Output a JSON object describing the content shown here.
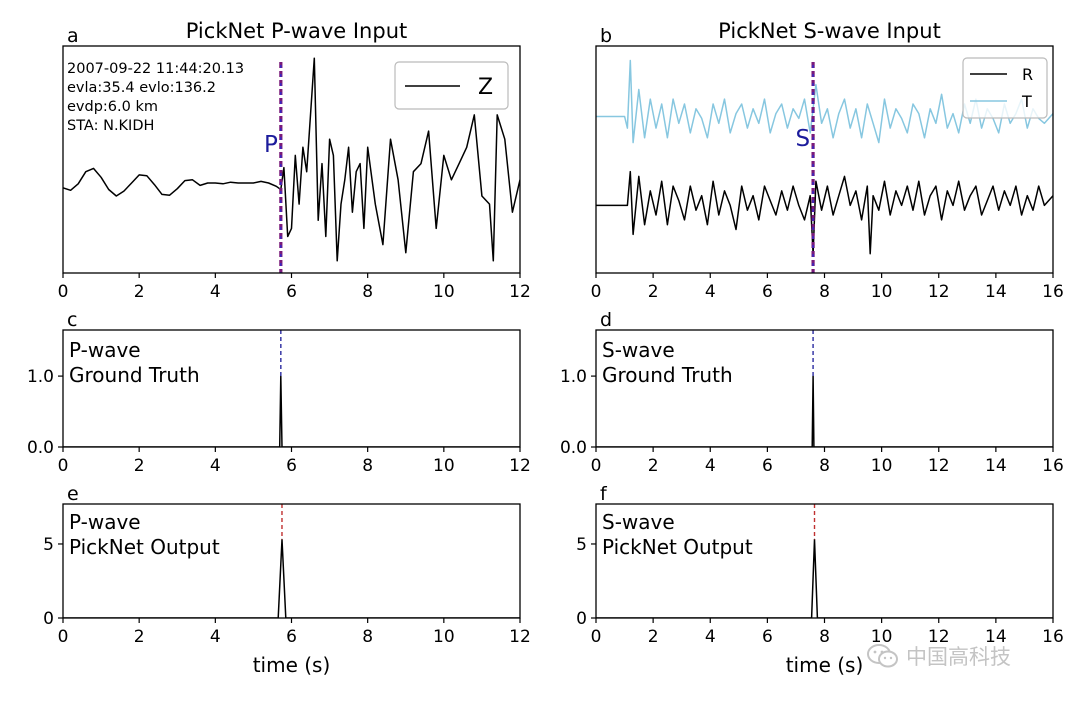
{
  "chart_data": [
    {
      "panel": "a",
      "type": "line",
      "title": "PickNet P-wave Input",
      "xlim": [
        0,
        12
      ],
      "xticks": [
        0,
        2,
        4,
        6,
        8,
        10,
        12
      ],
      "grid": false,
      "legend_placement": "top-right",
      "legend": [
        "Z"
      ],
      "info_lines": [
        "2007-09-22 11:44:20.13",
        "evla:35.4 evlo:136.2",
        "evdp:6.0 km",
        "STA: N.KIDH"
      ],
      "pick_label": "P",
      "pick_time": 5.72,
      "series": [
        {
          "name": "Z",
          "color": "#000000",
          "x": [
            0,
            0.2,
            0.4,
            0.6,
            0.8,
            1.0,
            1.2,
            1.4,
            1.6,
            1.8,
            2.0,
            2.2,
            2.4,
            2.6,
            2.8,
            3.0,
            3.2,
            3.4,
            3.6,
            3.8,
            4.0,
            4.2,
            4.4,
            4.6,
            4.8,
            5.0,
            5.2,
            5.4,
            5.6,
            5.72,
            5.8,
            5.9,
            6.0,
            6.1,
            6.2,
            6.3,
            6.4,
            6.5,
            6.6,
            6.7,
            6.8,
            6.9,
            7.0,
            7.1,
            7.2,
            7.3,
            7.4,
            7.5,
            7.6,
            7.7,
            7.8,
            7.9,
            8.0,
            8.2,
            8.4,
            8.6,
            8.8,
            9.0,
            9.2,
            9.4,
            9.6,
            9.8,
            10.0,
            10.2,
            10.4,
            10.6,
            10.8,
            11.0,
            11.2,
            11.3,
            11.4,
            11.6,
            11.8,
            12.0
          ],
          "y": [
            0.0,
            -0.03,
            0.05,
            0.2,
            0.24,
            0.13,
            -0.02,
            -0.1,
            -0.04,
            0.06,
            0.16,
            0.15,
            0.04,
            -0.08,
            -0.09,
            -0.01,
            0.09,
            0.1,
            0.03,
            0.06,
            0.06,
            0.05,
            0.07,
            0.06,
            0.06,
            0.06,
            0.08,
            0.06,
            0.02,
            -0.02,
            0.25,
            -0.6,
            -0.5,
            0.4,
            -0.2,
            0.5,
            0.2,
            0.9,
            1.6,
            -0.4,
            0.3,
            -0.6,
            0.6,
            0.4,
            -0.9,
            -0.2,
            0.1,
            0.5,
            -0.3,
            0.2,
            0.3,
            -0.5,
            0.5,
            -0.2,
            -0.7,
            0.6,
            0.1,
            -0.8,
            0.2,
            0.3,
            0.7,
            -0.5,
            0.4,
            0.1,
            0.3,
            0.5,
            0.9,
            -0.1,
            -0.2,
            -0.9,
            0.9,
            0.6,
            -0.3,
            0.1
          ]
        }
      ]
    },
    {
      "panel": "b",
      "type": "line",
      "title": "PickNet S-wave Input",
      "xlim": [
        0,
        16
      ],
      "xticks": [
        0,
        2,
        4,
        6,
        8,
        10,
        12,
        14,
        16
      ],
      "grid": false,
      "legend_placement": "top-right",
      "legend": [
        "R",
        "T"
      ],
      "pick_label": "S",
      "pick_time": 7.6,
      "series": [
        {
          "name": "R",
          "color": "#000000",
          "x": [
            0,
            0.4,
            0.8,
            1.1,
            1.2,
            1.3,
            1.5,
            1.7,
            1.9,
            2.1,
            2.3,
            2.5,
            2.7,
            2.9,
            3.1,
            3.3,
            3.5,
            3.7,
            3.9,
            4.1,
            4.3,
            4.5,
            4.7,
            4.9,
            5.1,
            5.3,
            5.5,
            5.7,
            5.9,
            6.1,
            6.3,
            6.5,
            6.7,
            6.9,
            7.1,
            7.3,
            7.5,
            7.6,
            7.7,
            7.9,
            8.1,
            8.3,
            8.5,
            8.7,
            8.9,
            9.1,
            9.3,
            9.5,
            9.6,
            9.7,
            9.9,
            10.1,
            10.3,
            10.5,
            10.7,
            10.9,
            11.1,
            11.3,
            11.5,
            11.7,
            11.9,
            12.1,
            12.3,
            12.5,
            12.7,
            12.9,
            13.1,
            13.3,
            13.5,
            13.7,
            13.9,
            14.1,
            14.3,
            14.5,
            14.7,
            14.9,
            15.1,
            15.3,
            15.5,
            15.7,
            16.0
          ],
          "y": [
            -0.5,
            -0.5,
            -0.5,
            -0.5,
            -0.15,
            -0.8,
            -0.2,
            -0.7,
            -0.35,
            -0.6,
            -0.25,
            -0.7,
            -0.3,
            -0.45,
            -0.65,
            -0.3,
            -0.55,
            -0.4,
            -0.7,
            -0.25,
            -0.6,
            -0.35,
            -0.5,
            -0.75,
            -0.3,
            -0.55,
            -0.4,
            -0.65,
            -0.3,
            -0.45,
            -0.6,
            -0.35,
            -0.55,
            -0.3,
            -0.5,
            -0.65,
            -0.4,
            -1.0,
            -0.25,
            -0.55,
            -0.3,
            -0.6,
            -0.4,
            -0.2,
            -0.5,
            -0.35,
            -0.65,
            -0.3,
            -1.0,
            -0.4,
            -0.55,
            -0.25,
            -0.6,
            -0.35,
            -0.5,
            -0.3,
            -0.55,
            -0.25,
            -0.6,
            -0.4,
            -0.3,
            -0.65,
            -0.35,
            -0.5,
            -0.25,
            -0.55,
            -0.4,
            -0.3,
            -0.6,
            -0.45,
            -0.3,
            -0.55,
            -0.35,
            -0.5,
            -0.3,
            -0.6,
            -0.4,
            -0.55,
            -0.3,
            -0.5,
            -0.4
          ]
        },
        {
          "name": "T",
          "color": "#87c7e0",
          "x": [
            0,
            0.4,
            0.8,
            1.0,
            1.1,
            1.2,
            1.3,
            1.5,
            1.7,
            1.9,
            2.1,
            2.3,
            2.5,
            2.7,
            2.9,
            3.1,
            3.3,
            3.5,
            3.7,
            3.9,
            4.1,
            4.3,
            4.5,
            4.7,
            4.9,
            5.1,
            5.3,
            5.5,
            5.7,
            5.9,
            6.1,
            6.3,
            6.5,
            6.7,
            6.9,
            7.1,
            7.3,
            7.5,
            7.7,
            7.9,
            8.1,
            8.3,
            8.5,
            8.7,
            8.9,
            9.1,
            9.3,
            9.5,
            9.7,
            9.9,
            10.1,
            10.3,
            10.5,
            10.7,
            10.9,
            11.1,
            11.3,
            11.5,
            11.7,
            11.9,
            12.1,
            12.3,
            12.5,
            12.7,
            12.9,
            13.1,
            13.3,
            13.5,
            13.7,
            13.9,
            14.1,
            14.3,
            14.5,
            14.7,
            14.9,
            15.1,
            15.3,
            15.5,
            15.7,
            16.0
          ],
          "y": [
            0.42,
            0.42,
            0.42,
            0.42,
            0.3,
            1.0,
            0.15,
            0.7,
            0.2,
            0.6,
            0.3,
            0.55,
            0.2,
            0.6,
            0.35,
            0.55,
            0.25,
            0.5,
            0.4,
            0.2,
            0.55,
            0.35,
            0.6,
            0.25,
            0.45,
            0.55,
            0.3,
            0.5,
            0.35,
            0.6,
            0.25,
            0.45,
            0.55,
            0.3,
            0.5,
            0.4,
            0.6,
            0.25,
            0.75,
            0.35,
            0.5,
            0.2,
            0.45,
            0.6,
            0.3,
            0.5,
            0.2,
            0.55,
            0.35,
            0.15,
            0.6,
            0.3,
            0.5,
            0.4,
            0.25,
            0.55,
            0.45,
            0.2,
            0.5,
            0.35,
            0.65,
            0.3,
            0.45,
            0.25,
            0.55,
            0.35,
            0.6,
            0.3,
            0.5,
            0.4,
            0.25,
            0.55,
            0.35,
            0.45,
            0.6,
            0.3,
            0.5,
            0.4,
            0.35,
            0.45
          ]
        }
      ]
    },
    {
      "panel": "c",
      "type": "line",
      "label_lines": [
        "P-wave",
        "Ground Truth"
      ],
      "xlim": [
        0,
        12
      ],
      "ylim": [
        0,
        1.65
      ],
      "xticks": [
        0,
        2,
        4,
        6,
        8,
        10,
        12
      ],
      "yticks": [
        0.0,
        1.0
      ],
      "ytick_labels": [
        "0.0",
        "1.0"
      ],
      "pick_time": 5.72,
      "series": [
        {
          "name": "",
          "color": "#000000",
          "x": [
            0,
            5.69,
            5.72,
            5.75,
            12
          ],
          "y": [
            0,
            0,
            1.0,
            0,
            0
          ]
        }
      ]
    },
    {
      "panel": "d",
      "type": "line",
      "label_lines": [
        "S-wave",
        "Ground Truth"
      ],
      "xlim": [
        0,
        16
      ],
      "ylim": [
        0,
        1.65
      ],
      "xticks": [
        0,
        2,
        4,
        6,
        8,
        10,
        12,
        14,
        16
      ],
      "yticks": [
        0.0,
        1.0
      ],
      "ytick_labels": [
        "0.0",
        "1.0"
      ],
      "pick_time": 7.6,
      "series": [
        {
          "name": "",
          "color": "#000000",
          "x": [
            0,
            7.57,
            7.6,
            7.63,
            16
          ],
          "y": [
            0,
            0,
            1.0,
            0,
            0
          ]
        }
      ]
    },
    {
      "panel": "e",
      "type": "line",
      "label_lines": [
        "P-wave",
        "PickNet Output"
      ],
      "xlim": [
        0,
        12
      ],
      "ylim": [
        0,
        7.7
      ],
      "xticks": [
        0,
        2,
        4,
        6,
        8,
        10,
        12
      ],
      "yticks": [
        0,
        5
      ],
      "ytick_labels": [
        "0",
        "5"
      ],
      "xlabel": "time (s)",
      "pick_time": 5.75,
      "series": [
        {
          "name": "",
          "color": "#000000",
          "x": [
            0,
            5.65,
            5.75,
            5.85,
            12
          ],
          "y": [
            0,
            0,
            5.3,
            0,
            0
          ]
        }
      ]
    },
    {
      "panel": "f",
      "type": "line",
      "label_lines": [
        "S-wave",
        "PickNet Output"
      ],
      "xlim": [
        0,
        16
      ],
      "ylim": [
        0,
        7.7
      ],
      "xticks": [
        0,
        2,
        4,
        6,
        8,
        10,
        12,
        14,
        16
      ],
      "yticks": [
        0,
        5
      ],
      "ytick_labels": [
        "0",
        "5"
      ],
      "xlabel": "time (s)",
      "pick_time": 7.65,
      "series": [
        {
          "name": "",
          "color": "#000000",
          "x": [
            0,
            7.55,
            7.65,
            7.75,
            16
          ],
          "y": [
            0,
            0,
            5.3,
            0,
            0
          ]
        }
      ]
    }
  ],
  "colors": {
    "p_pick_line": "#7a1a7a",
    "p_pick_dash_alt": "#2a2ad0",
    "gt_pick_line": "#2a2aa0",
    "output_pick_line": "#c03030",
    "pick_label": "#1c1c9c"
  },
  "watermark": {
    "text": "中国高科技",
    "icon": "wechat-icon"
  }
}
